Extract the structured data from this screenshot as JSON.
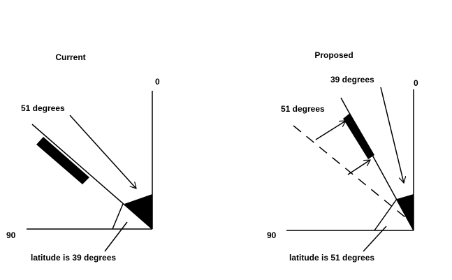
{
  "left": {
    "title": "Current",
    "axis_zero": "0",
    "axis_ninety": "90",
    "angle_label": "51 degrees",
    "latitude_label": "latitude is 39 degrees"
  },
  "right": {
    "title": "Proposed",
    "angle_top_label": "39 degrees",
    "axis_zero": "0",
    "angle_label": "51 degrees",
    "axis_ninety": "90",
    "latitude_label": "latitude is 51 degrees"
  }
}
